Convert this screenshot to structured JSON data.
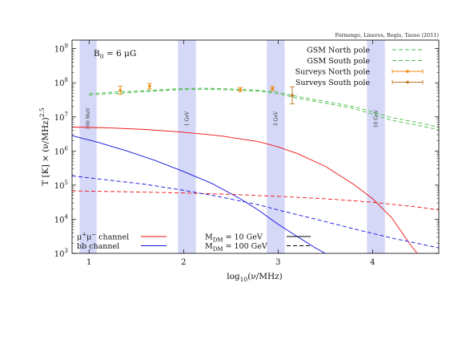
{
  "chart_data": {
    "type": "line",
    "credit": "Fornengo, Lineros, Regis, Taoso (2011)",
    "xlabel": "log",
    "xlabel_sub": "10",
    "xlabel_tail": "(ν/MHz)",
    "ylabel": "T [K] × (ν/MHz)",
    "ylabel_sup": "2.5",
    "xlim": [
      0.82,
      4.7
    ],
    "ylim_log10": [
      3,
      9.25
    ],
    "x_ticks": [
      "1",
      "2",
      "3",
      "4"
    ],
    "y_ticks": [
      {
        "base": "10",
        "exp": "3"
      },
      {
        "base": "10",
        "exp": "4"
      },
      {
        "base": "10",
        "exp": "5"
      },
      {
        "base": "10",
        "exp": "6"
      },
      {
        "base": "10",
        "exp": "7"
      },
      {
        "base": "10",
        "exp": "8"
      },
      {
        "base": "10",
        "exp": "9"
      }
    ],
    "field_annotation": {
      "main": "B",
      "sub": "0",
      "rest": " = 6 μG"
    },
    "bands": [
      {
        "x": [
          0.9,
          1.08
        ],
        "label": "300 MeV"
      },
      {
        "x": [
          1.94,
          2.13
        ],
        "label": "1 GeV"
      },
      {
        "x": [
          2.88,
          3.07
        ],
        "label": "3 GeV"
      },
      {
        "x": [
          3.94,
          4.13
        ],
        "label": "10 GeV"
      }
    ],
    "series": [
      {
        "name": "GSM North pole",
        "color": "#44bb44",
        "dash": "dashed",
        "x": [
          1.0,
          1.3,
          1.6,
          1.9,
          2.2,
          2.5,
          2.8,
          3.0,
          3.2,
          3.5,
          3.8,
          4.0,
          4.2,
          4.5,
          4.7
        ],
        "log10_y": [
          7.68,
          7.73,
          7.77,
          7.82,
          7.84,
          7.82,
          7.78,
          7.72,
          7.6,
          7.45,
          7.3,
          7.15,
          6.98,
          6.82,
          6.7
        ]
      },
      {
        "name": "GSM South pole",
        "color": "#44bb44",
        "dash": "dashed",
        "x": [
          1.0,
          1.3,
          1.6,
          1.9,
          2.2,
          2.5,
          2.8,
          3.0,
          3.2,
          3.5,
          3.8,
          4.0,
          4.2,
          4.5,
          4.7
        ],
        "log10_y": [
          7.64,
          7.69,
          7.74,
          7.79,
          7.81,
          7.79,
          7.75,
          7.68,
          7.55,
          7.4,
          7.24,
          7.08,
          6.9,
          6.74,
          6.62
        ]
      },
      {
        "name": "Surveys North pole",
        "color": "#ee8811",
        "dash": "points",
        "x": [
          1.33,
          1.64,
          2.6,
          2.94
        ],
        "log10_y": [
          7.78,
          7.9,
          7.8,
          7.83
        ],
        "err_log10": [
          0.12,
          0.08,
          0.06,
          0.06
        ]
      },
      {
        "name": "Surveys South pole",
        "color": "#bb7722",
        "dash": "points",
        "x": [
          3.15
        ],
        "log10_y": [
          7.63
        ],
        "err_log10": [
          0.25
        ]
      },
      {
        "name": "",
        "color": "#ee1111",
        "dash": "solid",
        "x": [
          0.82,
          1.2,
          1.6,
          2.0,
          2.4,
          2.8,
          3.0,
          3.2,
          3.5,
          3.8,
          4.0,
          4.2,
          4.4,
          4.5
        ],
        "log10_y": [
          6.7,
          6.68,
          6.63,
          6.55,
          6.44,
          6.27,
          6.12,
          5.93,
          5.55,
          5.02,
          4.6,
          4.05,
          3.25,
          2.9
        ]
      },
      {
        "name": "",
        "color": "#1111dd",
        "dash": "solid",
        "x": [
          0.82,
          1.1,
          1.4,
          1.7,
          2.0,
          2.3,
          2.6,
          2.8,
          3.0,
          3.2,
          3.4,
          3.6,
          3.7
        ],
        "log10_y": [
          6.45,
          6.25,
          6.0,
          5.72,
          5.4,
          5.05,
          4.6,
          4.25,
          3.85,
          3.5,
          3.15,
          2.85,
          2.7
        ]
      },
      {
        "name": "",
        "color": "#ee1111",
        "dash": "dashed",
        "x": [
          0.82,
          1.5,
          2.0,
          2.5,
          3.0,
          3.5,
          4.0,
          4.5,
          4.7
        ],
        "log10_y": [
          4.83,
          4.8,
          4.77,
          4.73,
          4.67,
          4.6,
          4.5,
          4.35,
          4.27
        ]
      },
      {
        "name": "",
        "color": "#1111dd",
        "dash": "dashed",
        "x": [
          0.82,
          1.2,
          1.6,
          2.0,
          2.4,
          2.8,
          3.0,
          3.4,
          3.8,
          4.2,
          4.6,
          4.7
        ],
        "log10_y": [
          5.27,
          5.15,
          5.02,
          4.85,
          4.65,
          4.42,
          4.27,
          4.0,
          3.72,
          3.45,
          3.22,
          3.16
        ]
      }
    ],
    "legend_top": [
      {
        "label": "GSM North pole",
        "color": "#44bb44",
        "style": "dashed"
      },
      {
        "label": "GSM South pole",
        "color": "#44bb44",
        "style": "dashed"
      },
      {
        "label": "Surveys North pole",
        "color": "#ee8811",
        "style": "errbar"
      },
      {
        "label": "Surveys South pole",
        "color": "#bb7722",
        "style": "errbar"
      }
    ],
    "legend_channels": [
      {
        "main": "μ",
        "sup1": "+",
        "mid": "μ",
        "sup2": "−",
        "rest": " channel",
        "color": "#ee1111"
      },
      {
        "main": "bb channel",
        "sup1": "",
        "mid": "",
        "sup2": "",
        "rest": "",
        "color": "#1111dd"
      }
    ],
    "legend_masses": [
      {
        "main": "M",
        "sub": "DM",
        "rest": " = 10 GeV",
        "style": "solid"
      },
      {
        "main": "M",
        "sub": "DM",
        "rest": " = 100 GeV",
        "style": "dashed"
      }
    ]
  }
}
